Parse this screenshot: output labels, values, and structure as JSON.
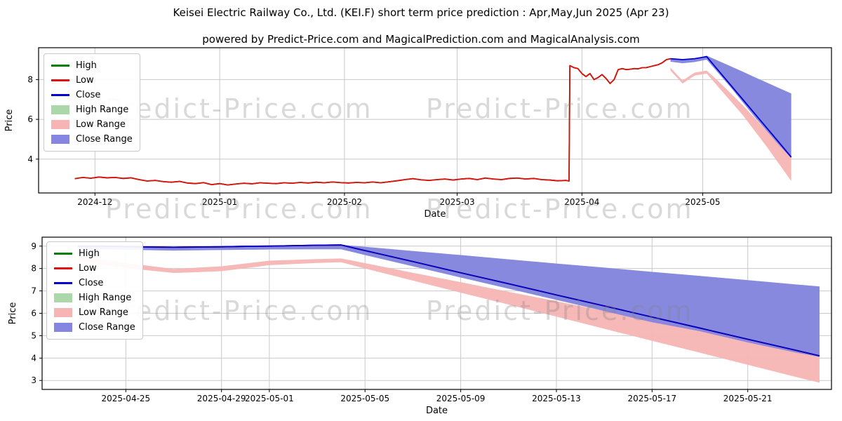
{
  "title": "Keisei Electric Railway Co., Ltd. (KEI.F) short term price prediction : Apr,May,Jun 2025 (Apr 23)",
  "subtitle": "powered by Predict-Price.com and MagicalPrediction.com and MagicalAnalysis.com",
  "watermark": {
    "text": "Predict-Price.com"
  },
  "legend": {
    "position": "upper left",
    "entries": [
      {
        "label": "High",
        "swatch": "line",
        "color": "#008000"
      },
      {
        "label": "Low",
        "swatch": "line",
        "color": "#e01010"
      },
      {
        "label": "Close",
        "swatch": "line",
        "color": "#0000cd"
      },
      {
        "label": "High Range",
        "swatch": "patch",
        "color": "#abd7ab"
      },
      {
        "label": "Low Range",
        "swatch": "patch",
        "color": "#f7b4b4"
      },
      {
        "label": "Close Range",
        "swatch": "patch",
        "color": "#8585e2"
      }
    ]
  },
  "chart_data": [
    {
      "type": "line",
      "name": "history-with-prediction",
      "xlabel": "Date",
      "ylabel": "Price",
      "xlim": [
        0,
        197
      ],
      "ylim": [
        2.3,
        9.6
      ],
      "grid": true,
      "yticks": [
        4,
        6,
        8
      ],
      "xticks": [
        {
          "pos": 14,
          "label": "2024-12"
        },
        {
          "pos": 45,
          "label": "2025-01"
        },
        {
          "pos": 76,
          "label": "2025-02"
        },
        {
          "pos": 104,
          "label": "2025-03"
        },
        {
          "pos": 135,
          "label": "2025-04"
        },
        {
          "pos": 165,
          "label": "2025-05"
        }
      ],
      "bands": [
        {
          "name": "High Range",
          "color": "#abd7ab",
          "ref": "Close Range"
        },
        {
          "name": "Low Range",
          "color": "#f7b4b4",
          "upper": [
            [
              157,
              8.6
            ],
            [
              160,
              7.95
            ],
            [
              163,
              8.35
            ],
            [
              166,
              8.45
            ],
            [
              169,
              7.9
            ],
            [
              172,
              7.3
            ],
            [
              175,
              6.7
            ],
            [
              178,
              6.05
            ],
            [
              181,
              5.4
            ],
            [
              184,
              4.8
            ],
            [
              187,
              4.15
            ]
          ],
          "lower": [
            [
              157,
              8.45
            ],
            [
              160,
              7.8
            ],
            [
              163,
              8.2
            ],
            [
              166,
              8.3
            ],
            [
              169,
              7.6
            ],
            [
              172,
              6.9
            ],
            [
              175,
              6.2
            ],
            [
              178,
              5.4
            ],
            [
              181,
              4.6
            ],
            [
              184,
              3.75
            ],
            [
              187,
              2.9
            ]
          ]
        },
        {
          "name": "Close Range",
          "color": "#8585e2",
          "upper": [
            [
              157,
              9.05
            ],
            [
              160,
              9.0
            ],
            [
              163,
              9.05
            ],
            [
              166,
              9.2
            ],
            [
              169,
              8.93
            ],
            [
              172,
              8.66
            ],
            [
              175,
              8.39
            ],
            [
              178,
              8.11
            ],
            [
              181,
              7.84
            ],
            [
              184,
              7.57
            ],
            [
              187,
              7.3
            ]
          ],
          "lower": [
            [
              157,
              8.9
            ],
            [
              160,
              8.82
            ],
            [
              163,
              8.88
            ],
            [
              166,
              9.0
            ],
            [
              169,
              8.3
            ],
            [
              172,
              7.6
            ],
            [
              175,
              6.85
            ],
            [
              178,
              6.1
            ],
            [
              181,
              5.4
            ],
            [
              184,
              4.7
            ],
            [
              187,
              4.05
            ]
          ]
        }
      ],
      "series": [
        {
          "name": "High",
          "color": "#008000",
          "ref": "Low"
        },
        {
          "name": "Low",
          "color": "#e01010",
          "points": [
            [
              9,
              3.02
            ],
            [
              11,
              3.08
            ],
            [
              13,
              3.04
            ],
            [
              15,
              3.1
            ],
            [
              17,
              3.06
            ],
            [
              19,
              3.08
            ],
            [
              21,
              3.03
            ],
            [
              23,
              3.06
            ],
            [
              25,
              2.97
            ],
            [
              27,
              2.9
            ],
            [
              29,
              2.93
            ],
            [
              31,
              2.87
            ],
            [
              33,
              2.84
            ],
            [
              35,
              2.88
            ],
            [
              37,
              2.8
            ],
            [
              39,
              2.77
            ],
            [
              41,
              2.82
            ],
            [
              43,
              2.72
            ],
            [
              45,
              2.77
            ],
            [
              47,
              2.7
            ],
            [
              49,
              2.75
            ],
            [
              51,
              2.79
            ],
            [
              53,
              2.76
            ],
            [
              55,
              2.81
            ],
            [
              57,
              2.79
            ],
            [
              59,
              2.77
            ],
            [
              61,
              2.81
            ],
            [
              63,
              2.79
            ],
            [
              65,
              2.83
            ],
            [
              67,
              2.8
            ],
            [
              69,
              2.84
            ],
            [
              71,
              2.81
            ],
            [
              73,
              2.85
            ],
            [
              75,
              2.82
            ],
            [
              77,
              2.8
            ],
            [
              79,
              2.83
            ],
            [
              81,
              2.81
            ],
            [
              83,
              2.85
            ],
            [
              85,
              2.81
            ],
            [
              87,
              2.86
            ],
            [
              89,
              2.91
            ],
            [
              91,
              2.97
            ],
            [
              93,
              3.02
            ],
            [
              95,
              2.96
            ],
            [
              97,
              2.93
            ],
            [
              99,
              2.97
            ],
            [
              101,
              3.0
            ],
            [
              103,
              2.95
            ],
            [
              105,
              3.0
            ],
            [
              107,
              3.03
            ],
            [
              109,
              2.97
            ],
            [
              111,
              3.05
            ],
            [
              113,
              3.0
            ],
            [
              115,
              2.97
            ],
            [
              117,
              3.03
            ],
            [
              119,
              3.05
            ],
            [
              121,
              3.0
            ],
            [
              123,
              3.03
            ],
            [
              125,
              2.97
            ],
            [
              127,
              2.95
            ],
            [
              129,
              2.91
            ],
            [
              131,
              2.93
            ],
            [
              131.8,
              2.9
            ],
            [
              132,
              8.7
            ],
            [
              133,
              8.6
            ],
            [
              134,
              8.55
            ],
            [
              135,
              8.3
            ],
            [
              136,
              8.15
            ],
            [
              137,
              8.3
            ],
            [
              138,
              8.0
            ],
            [
              139,
              8.1
            ],
            [
              140,
              8.25
            ],
            [
              141,
              8.05
            ],
            [
              142,
              7.8
            ],
            [
              143,
              8.0
            ],
            [
              144,
              8.5
            ],
            [
              145,
              8.55
            ],
            [
              146,
              8.5
            ],
            [
              147,
              8.52
            ],
            [
              148,
              8.55
            ],
            [
              149,
              8.54
            ],
            [
              150,
              8.6
            ],
            [
              151,
              8.6
            ],
            [
              152,
              8.65
            ],
            [
              153,
              8.7
            ],
            [
              154,
              8.75
            ],
            [
              155,
              8.85
            ],
            [
              156,
              9.0
            ],
            [
              157,
              9.05
            ]
          ]
        },
        {
          "name": "Close",
          "color": "#0000cd",
          "points": [
            [
              157,
              9.05
            ],
            [
              160,
              9.0
            ],
            [
              163,
              9.05
            ],
            [
              166,
              9.15
            ],
            [
              169,
              8.43
            ],
            [
              172,
              7.71
            ],
            [
              175,
              6.99
            ],
            [
              178,
              6.27
            ],
            [
              181,
              5.55
            ],
            [
              184,
              4.83
            ],
            [
              187,
              4.1
            ]
          ]
        }
      ]
    },
    {
      "type": "line",
      "name": "prediction-detail",
      "xlabel": "Date",
      "ylabel": "Price",
      "xlim": [
        -1.5,
        31.5
      ],
      "ylim": [
        2.6,
        9.4
      ],
      "grid": true,
      "yticks": [
        3,
        4,
        5,
        6,
        7,
        8,
        9
      ],
      "xticks": [
        {
          "pos": 2,
          "label": "2025-04-25"
        },
        {
          "pos": 6,
          "label": "2025-04-29"
        },
        {
          "pos": 8,
          "label": "2025-05-01"
        },
        {
          "pos": 12,
          "label": "2025-05-05"
        },
        {
          "pos": 16,
          "label": "2025-05-09"
        },
        {
          "pos": 20,
          "label": "2025-05-13"
        },
        {
          "pos": 24,
          "label": "2025-05-17"
        },
        {
          "pos": 28,
          "label": "2025-05-21"
        }
      ],
      "bands": [
        {
          "name": "High Range",
          "color": "#abd7ab",
          "ref": "Close Range"
        },
        {
          "name": "Low Range",
          "color": "#f7b4b4",
          "upper": [
            [
              0,
              8.55
            ],
            [
              2,
              8.25
            ],
            [
              4,
              7.98
            ],
            [
              6,
              8.1
            ],
            [
              8,
              8.35
            ],
            [
              10,
              8.42
            ],
            [
              11,
              8.45
            ],
            [
              12,
              8.24
            ],
            [
              14,
              7.81
            ],
            [
              16,
              7.39
            ],
            [
              18,
              6.96
            ],
            [
              20,
              6.54
            ],
            [
              22,
              6.11
            ],
            [
              24,
              5.69
            ],
            [
              26,
              5.26
            ],
            [
              28,
              4.84
            ],
            [
              30,
              4.41
            ],
            [
              31,
              4.2
            ]
          ],
          "lower": [
            [
              0,
              8.35
            ],
            [
              2,
              8.02
            ],
            [
              4,
              7.8
            ],
            [
              6,
              7.88
            ],
            [
              8,
              8.15
            ],
            [
              10,
              8.25
            ],
            [
              11,
              8.28
            ],
            [
              12,
              8.0
            ],
            [
              14,
              7.46
            ],
            [
              16,
              6.92
            ],
            [
              18,
              6.39
            ],
            [
              20,
              5.85
            ],
            [
              22,
              5.31
            ],
            [
              24,
              4.77
            ],
            [
              26,
              4.24
            ],
            [
              28,
              3.7
            ],
            [
              30,
              3.16
            ],
            [
              31,
              2.9
            ]
          ]
        },
        {
          "name": "Close Range",
          "color": "#8585e2",
          "upper": [
            [
              0,
              9.02
            ],
            [
              2,
              9.0
            ],
            [
              4,
              8.98
            ],
            [
              6,
              9.0
            ],
            [
              8,
              9.02
            ],
            [
              10,
              9.05
            ],
            [
              11,
              9.06
            ],
            [
              12,
              8.97
            ],
            [
              14,
              8.78
            ],
            [
              16,
              8.6
            ],
            [
              18,
              8.41
            ],
            [
              20,
              8.22
            ],
            [
              22,
              8.04
            ],
            [
              24,
              7.85
            ],
            [
              26,
              7.67
            ],
            [
              28,
              7.48
            ],
            [
              30,
              7.29
            ],
            [
              31,
              7.2
            ]
          ],
          "lower": [
            [
              0,
              8.88
            ],
            [
              2,
              8.84
            ],
            [
              4,
              8.8
            ],
            [
              6,
              8.83
            ],
            [
              8,
              8.85
            ],
            [
              10,
              8.86
            ],
            [
              11,
              8.86
            ],
            [
              12,
              8.6
            ],
            [
              14,
              8.1
            ],
            [
              16,
              7.6
            ],
            [
              18,
              7.1
            ],
            [
              20,
              6.6
            ],
            [
              22,
              6.1
            ],
            [
              24,
              5.6
            ],
            [
              26,
              5.2
            ],
            [
              28,
              4.7
            ],
            [
              30,
              4.25
            ],
            [
              31,
              4.05
            ]
          ]
        }
      ],
      "series": [
        {
          "name": "High",
          "color": "#008000",
          "ref": "Close"
        },
        {
          "name": "Low",
          "color": "#e01010",
          "ref": "Close"
        },
        {
          "name": "Close",
          "color": "#0000cd",
          "points": [
            [
              0,
              9.0
            ],
            [
              1,
              9.0
            ],
            [
              2,
              8.98
            ],
            [
              3,
              8.96
            ],
            [
              4,
              8.95
            ],
            [
              5,
              8.96
            ],
            [
              6,
              8.97
            ],
            [
              7,
              8.99
            ],
            [
              8,
              9.0
            ],
            [
              9,
              9.02
            ],
            [
              10,
              9.04
            ],
            [
              11,
              9.05
            ],
            [
              12,
              8.8
            ],
            [
              14,
              8.31
            ],
            [
              16,
              7.81
            ],
            [
              18,
              7.32
            ],
            [
              20,
              6.82
            ],
            [
              22,
              6.33
            ],
            [
              24,
              5.83
            ],
            [
              26,
              5.34
            ],
            [
              28,
              4.84
            ],
            [
              30,
              4.35
            ],
            [
              31,
              4.1
            ]
          ]
        }
      ]
    }
  ]
}
